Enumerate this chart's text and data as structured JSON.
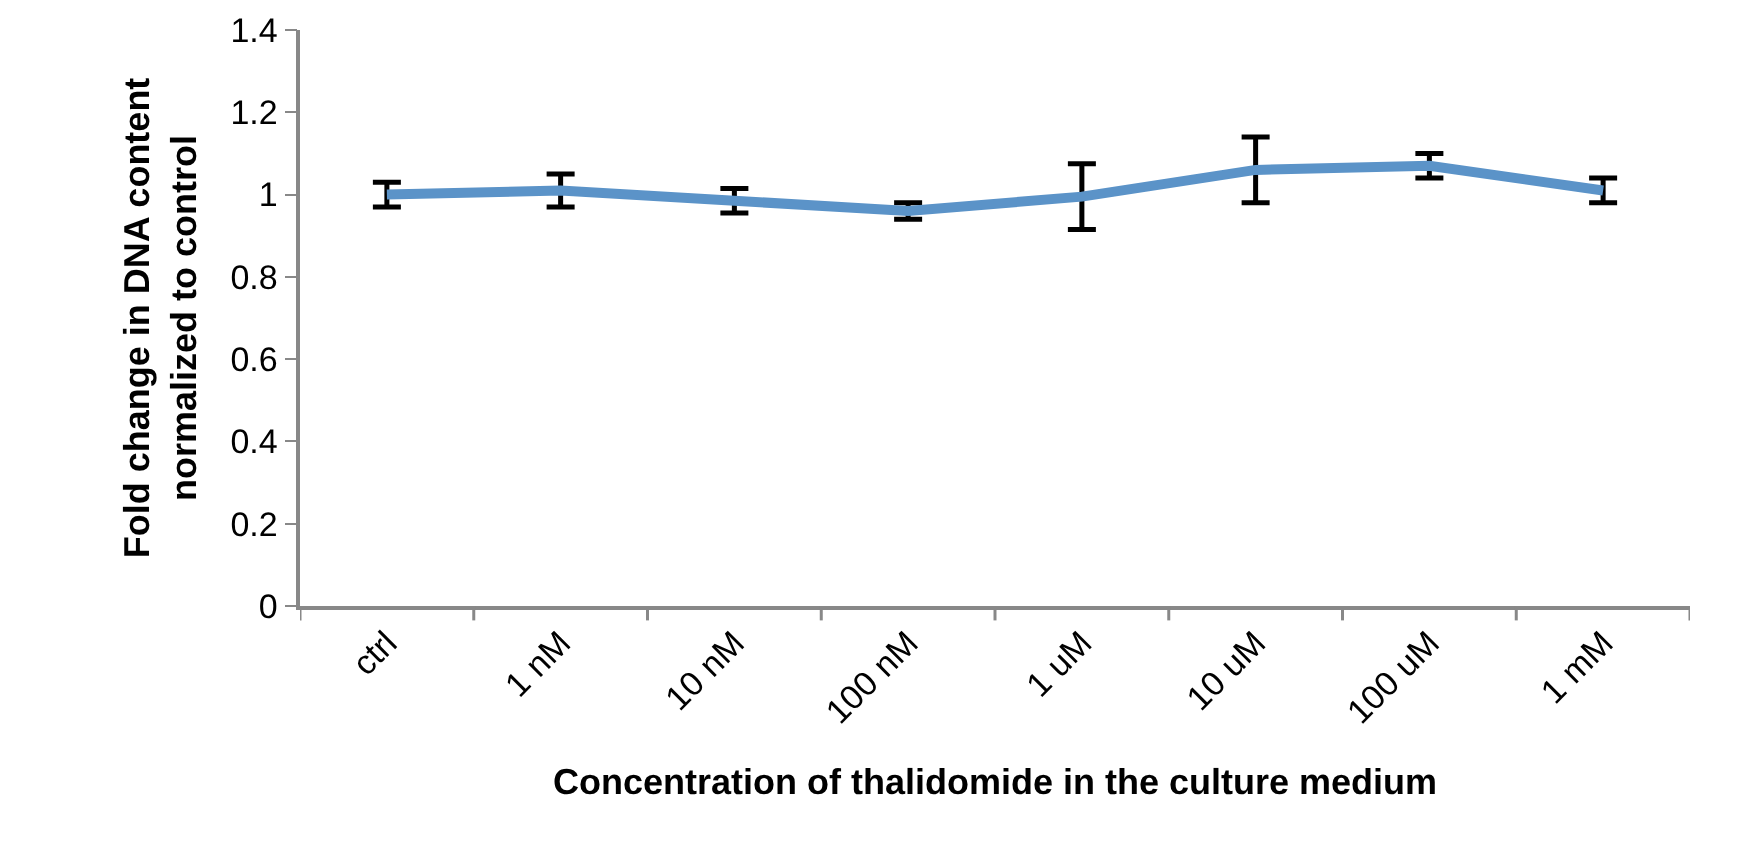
{
  "chart_data": {
    "type": "line",
    "xlabel": "Concentration of thalidomide in the culture medium",
    "ylabel": "Fold change in DNA content\nnormalized to control",
    "categories": [
      "ctrl",
      "1 nM",
      "10 nM",
      "100 nM",
      "1 uM",
      "10 uM",
      "100 uM",
      "1 mM"
    ],
    "series": [
      {
        "color": "#5b93c8",
        "values": [
          1.0,
          1.01,
          0.985,
          0.96,
          0.995,
          1.06,
          1.07,
          1.01
        ],
        "errors": [
          0.03,
          0.04,
          0.03,
          0.02,
          0.08,
          0.08,
          0.03,
          0.03
        ]
      }
    ],
    "ylim": [
      0,
      1.4
    ],
    "yticks": [
      0,
      0.2,
      0.4,
      0.6,
      0.8,
      1,
      1.2,
      1.4
    ],
    "grid": false,
    "line_style": "solid"
  }
}
